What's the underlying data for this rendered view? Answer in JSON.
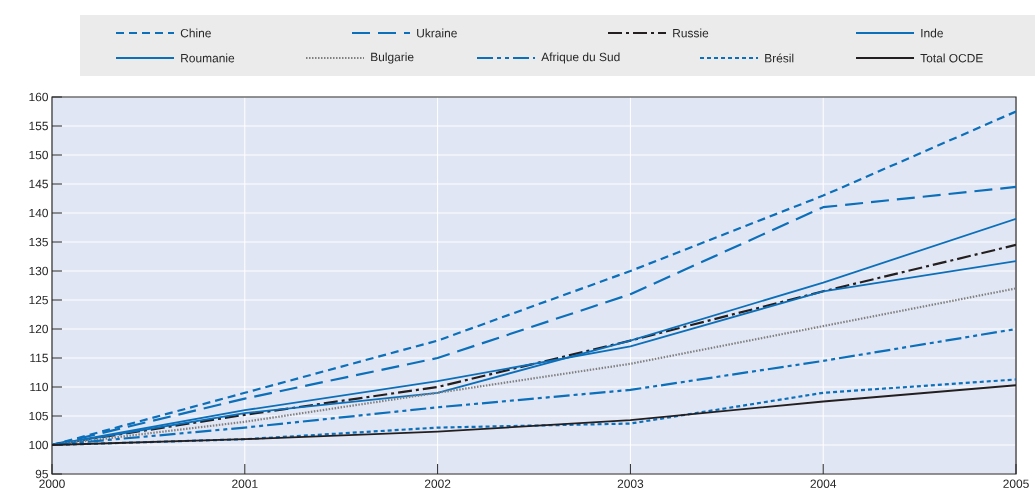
{
  "chart_data": {
    "type": "line",
    "x": [
      2000,
      2001,
      2002,
      2003,
      2004,
      2005
    ],
    "xlim": [
      2000,
      2005
    ],
    "xticks": [
      2000,
      2001,
      2002,
      2003,
      2004,
      2005
    ],
    "ylim": [
      95,
      160
    ],
    "yticks": [
      95,
      100,
      105,
      110,
      115,
      120,
      125,
      130,
      135,
      140,
      145,
      150,
      155,
      160
    ],
    "grid": true,
    "legend": "top",
    "series": [
      {
        "name": "Chine",
        "color": "#0b6fba",
        "line_style": "dashed",
        "values": [
          100,
          109,
          118,
          130,
          143,
          157.5
        ]
      },
      {
        "name": "Ukraine",
        "color": "#0b6fba",
        "line_style": "long dashed",
        "values": [
          100,
          108,
          115,
          126,
          141,
          144.5
        ]
      },
      {
        "name": "Russie",
        "color": "#231f20",
        "line_style": "dash-dot",
        "values": [
          100,
          105.2,
          110,
          118,
          126.5,
          134.5
        ]
      },
      {
        "name": "Inde",
        "color": "#0b6fba",
        "line_style": "solid",
        "values": [
          100,
          105.5,
          109,
          118,
          128,
          139
        ]
      },
      {
        "name": "Roumanie",
        "color": "#0b6fba",
        "line_style": "solid",
        "values": [
          100,
          106,
          111,
          117,
          126.5,
          131.7
        ]
      },
      {
        "name": "Bulgarie",
        "color": "#808080",
        "line_style": "dotted",
        "values": [
          100,
          104,
          109,
          114,
          120.5,
          127
        ]
      },
      {
        "name": "Afrique du Sud",
        "color": "#0b6fba",
        "line_style": "dash-dot-dot",
        "values": [
          100,
          103,
          106.5,
          109.5,
          114.5,
          120
        ]
      },
      {
        "name": "Brésil",
        "color": "#0b6fba",
        "line_style": "densely dashed",
        "values": [
          100,
          101,
          103,
          103.7,
          109,
          111.3
        ]
      },
      {
        "name": "Total OCDE",
        "color": "#231f20",
        "line_style": "solid",
        "values": [
          100,
          101,
          102.3,
          104.3,
          107.5,
          110.3
        ]
      }
    ]
  }
}
